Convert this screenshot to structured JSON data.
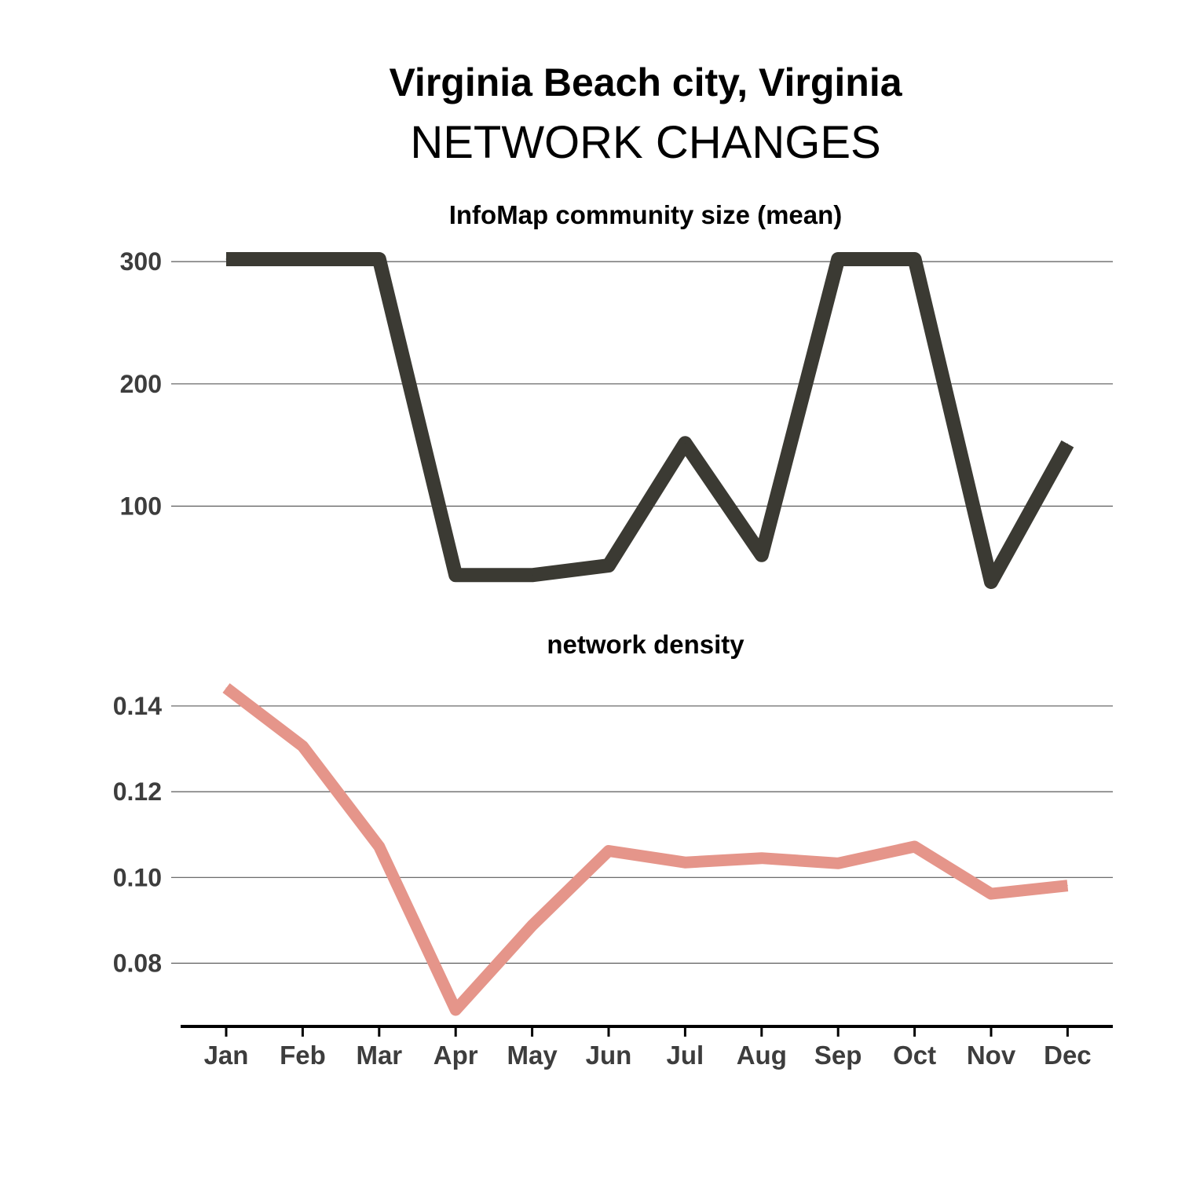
{
  "title": "Virginia Beach city, Virginia",
  "subtitle": "NETWORK CHANGES",
  "chart_data": [
    {
      "type": "line",
      "title": "InfoMap community size (mean)",
      "categories": [
        "Jan",
        "Feb",
        "Mar",
        "Apr",
        "May",
        "Jun",
        "Jul",
        "Aug",
        "Sep",
        "Oct",
        "Nov",
        "Dec"
      ],
      "series": [
        {
          "values": [
            302,
            302,
            302,
            43.6,
            43.6,
            51.4,
            151.5,
            60,
            302,
            302,
            38,
            151
          ]
        }
      ],
      "ylim": [
        38,
        302
      ],
      "yticks": [
        100,
        200,
        300
      ],
      "ytick_labels": [
        "100",
        "200",
        "300"
      ],
      "color": "#3b3a33",
      "grid": true
    },
    {
      "type": "line",
      "title": "network density",
      "categories": [
        "Jan",
        "Feb",
        "Mar",
        "Apr",
        "May",
        "Jun",
        "Jul",
        "Aug",
        "Sep",
        "Oct",
        "Nov",
        "Dec"
      ],
      "series": [
        {
          "values": [
            0.1442,
            0.1306,
            0.1072,
            0.0691,
            0.0888,
            0.1062,
            0.1035,
            0.1045,
            0.1033,
            0.1072,
            0.0962,
            0.0981
          ]
        }
      ],
      "ylim": [
        0.0691,
        0.1442
      ],
      "yticks": [
        0.08,
        0.1,
        0.12,
        0.14
      ],
      "ytick_labels": [
        "0.08",
        "0.10",
        "0.12",
        "0.14"
      ],
      "color": "#e5958a",
      "grid": true
    }
  ]
}
